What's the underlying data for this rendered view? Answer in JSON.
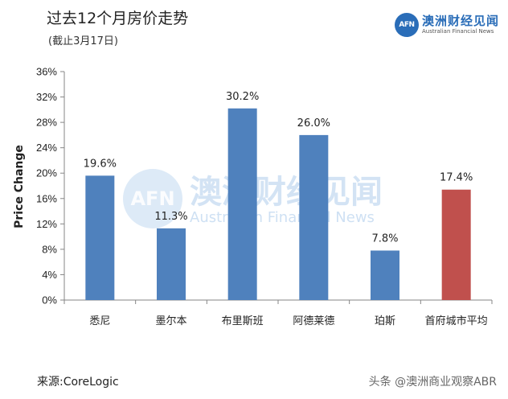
{
  "header": {
    "title": "过去12个月房价走势",
    "subtitle": "(截止3月17日)"
  },
  "logo": {
    "mark": "AFN",
    "cn": "澳洲财经见闻",
    "en": "Australian Financial News"
  },
  "watermark": {
    "mark": "AFN",
    "cn": "澳洲财经见闻",
    "en": "Australian Financial News"
  },
  "footer": {
    "source": "来源:CoreLogic",
    "credit": "头条 @澳洲商业观察ABR"
  },
  "colors": {
    "bar_default": "#4f81bd",
    "bar_highlight": "#c0504d",
    "brand": "#2a6db8"
  },
  "chart_data": {
    "type": "bar",
    "ylabel": "Price Change",
    "ylim": [
      0,
      36
    ],
    "yticks": [
      "0%",
      "4%",
      "8%",
      "12%",
      "16%",
      "20%",
      "24%",
      "28%",
      "32%",
      "36%"
    ],
    "categories": [
      "悉尼",
      "墨尔本",
      "布里斯班",
      "阿德莱德",
      "珀斯",
      "首府城市平均"
    ],
    "values": [
      19.6,
      11.3,
      30.2,
      26.0,
      7.8,
      17.4
    ],
    "data_labels": [
      "19.6%",
      "11.3%",
      "30.2%",
      "26.0%",
      "7.8%",
      "17.4%"
    ],
    "highlight_index": 5,
    "grid": false
  }
}
